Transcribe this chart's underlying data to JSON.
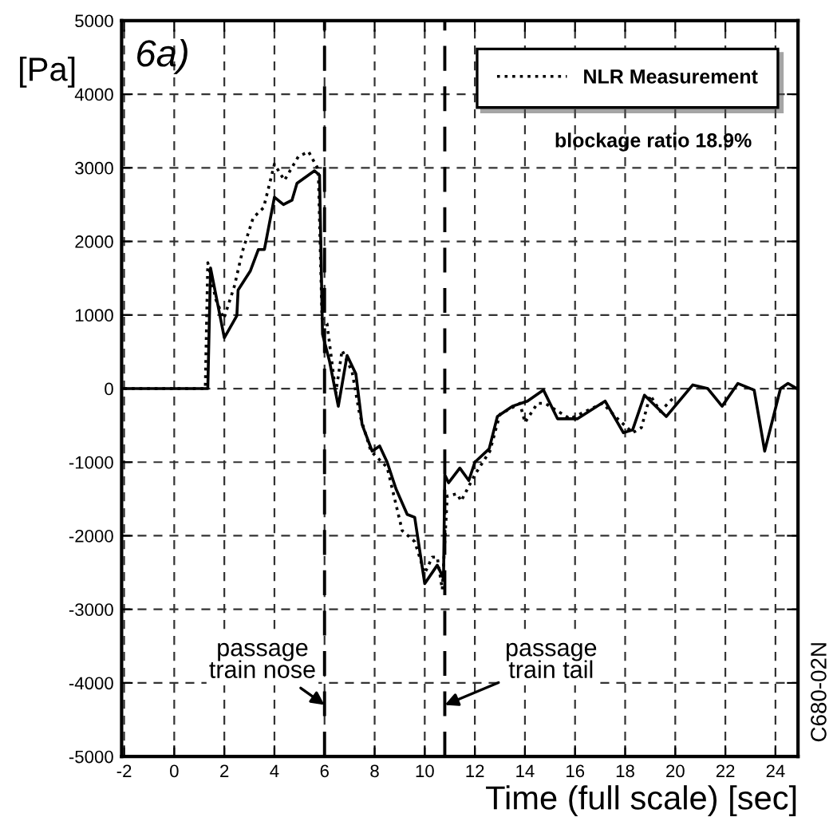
{
  "chart_data": {
    "type": "line",
    "xlabel": "Time (full scale) [sec]",
    "ylabel": "[Pa]",
    "xlim": [
      -2.1,
      24.9
    ],
    "ylim": [
      -5000,
      5000
    ],
    "xticks": [
      -2,
      0,
      2,
      4,
      6,
      8,
      10,
      12,
      14,
      16,
      18,
      20,
      22,
      24
    ],
    "yticks": [
      -5000,
      -4000,
      -3000,
      -2000,
      -1000,
      0,
      1000,
      2000,
      3000,
      4000,
      5000
    ],
    "grid": true,
    "legend": "top right",
    "series": [
      {
        "color": "#000000",
        "line_style": "solid",
        "x": [
          -2,
          -1,
          0,
          1,
          1.34,
          1.45,
          2.0,
          2.5,
          2.55,
          3.04,
          3.36,
          3.6,
          4.0,
          4.36,
          4.7,
          4.9,
          5.6,
          5.8,
          5.92,
          6.2,
          6.55,
          6.9,
          7.25,
          7.5,
          7.9,
          8.2,
          8.5,
          8.85,
          9.3,
          9.6,
          10.0,
          10.5,
          10.75,
          10.8,
          10.95,
          11.4,
          11.76,
          12.0,
          12.57,
          12.9,
          13.5,
          14.1,
          14.74,
          15.3,
          16.1,
          17.2,
          17.93,
          18.3,
          18.77,
          19.64,
          20.7,
          21.3,
          21.87,
          22.5,
          23.15,
          23.57,
          24.2,
          24.5,
          24.85
        ],
        "values": [
          0,
          0,
          0,
          0,
          0,
          1640,
          690,
          990,
          1340,
          1600,
          1890,
          1890,
          2600,
          2500,
          2560,
          2790,
          2960,
          2900,
          740,
          370,
          -240,
          450,
          200,
          -490,
          -850,
          -780,
          -1000,
          -1360,
          -1710,
          -1750,
          -2650,
          -2400,
          -2580,
          -1170,
          -1280,
          -1080,
          -1250,
          -1000,
          -820,
          -380,
          -240,
          -170,
          -20,
          -410,
          -410,
          -170,
          -600,
          -560,
          -90,
          -380,
          50,
          0,
          -240,
          70,
          -20,
          -850,
          0,
          70,
          0
        ]
      },
      {
        "name": "NLR Measurement",
        "color": "#000000",
        "line_style": "dotted",
        "x": [
          -2,
          -1,
          0,
          1,
          1.24,
          1.34,
          1.66,
          1.98,
          2.4,
          2.72,
          3.15,
          3.57,
          4.0,
          4.4,
          4.95,
          5.36,
          5.75,
          5.9,
          6.1,
          6.45,
          6.7,
          7.1,
          7.4,
          7.85,
          8.5,
          9.1,
          9.6,
          10.0,
          10.3,
          10.5,
          10.7,
          10.9,
          11.3,
          11.45,
          12.0,
          12.6,
          13.0,
          13.8,
          14.0,
          14.5,
          14.8,
          15.8,
          17.1,
          17.7,
          18.3,
          18.65,
          19.0,
          19.4,
          20.0
        ],
        "values": [
          0,
          0,
          0,
          0,
          0,
          1710,
          1210,
          950,
          1390,
          1860,
          2320,
          2460,
          3050,
          2830,
          3150,
          3220,
          2980,
          950,
          880,
          -60,
          520,
          230,
          -350,
          -850,
          -1070,
          -1930,
          -2080,
          -2510,
          -2290,
          -2290,
          -2730,
          -1460,
          -1430,
          -1530,
          -1170,
          -850,
          -350,
          -200,
          -460,
          -200,
          -200,
          -410,
          -200,
          -410,
          -600,
          -530,
          -90,
          -310,
          -100
        ]
      }
    ],
    "ref_lines": [
      {
        "axis": "x",
        "value": 6,
        "line_style": "dashed"
      },
      {
        "axis": "x",
        "value": 10.8,
        "line_style": "dashed"
      }
    ],
    "annotations": [
      "6a)",
      {
        "text": "passage\ntrain nose",
        "x": 6,
        "y": -4300
      },
      {
        "text": "passage\ntrain tail",
        "x": 10.8,
        "y": -4300
      },
      "blockage ratio 18.9%",
      "C680-02N"
    ]
  }
}
